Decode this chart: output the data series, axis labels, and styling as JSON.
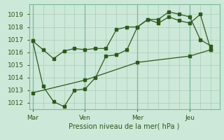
{
  "title": "",
  "xlabel": "Pression niveau de la mer( hPa )",
  "ylabel": "",
  "bg_color": "#cce8d8",
  "grid_color": "#aacdb8",
  "line_color": "#2d5a1b",
  "tick_color": "#2d5a1b",
  "yticks": [
    1012,
    1013,
    1014,
    1015,
    1016,
    1017,
    1018,
    1019
  ],
  "xtick_labels": [
    "Mar",
    "Ven",
    "Mer",
    "Jeu"
  ],
  "xtick_positions": [
    0,
    30,
    60,
    90
  ],
  "ylim": [
    1011.5,
    1019.8
  ],
  "xlim": [
    -2,
    107
  ],
  "series": [
    {
      "x": [
        0,
        6,
        12,
        18,
        24,
        30,
        36,
        42,
        48,
        54,
        60,
        66,
        72,
        78,
        84,
        90,
        96,
        102
      ],
      "y": [
        1016.9,
        1016.2,
        1015.5,
        1016.1,
        1016.3,
        1016.2,
        1016.3,
        1016.3,
        1017.8,
        1018.0,
        1018.0,
        1018.6,
        1018.3,
        1018.8,
        1018.5,
        1018.3,
        1019.0,
        1016.2
      ]
    },
    {
      "x": [
        0,
        6,
        12,
        18,
        24,
        30,
        36,
        42,
        48,
        54,
        60,
        66,
        72,
        78,
        84,
        90,
        96,
        102
      ],
      "y": [
        1016.9,
        1013.3,
        1012.1,
        1011.7,
        1013.0,
        1013.1,
        1014.0,
        1015.7,
        1015.8,
        1016.2,
        1018.0,
        1018.6,
        1018.6,
        1019.2,
        1019.0,
        1018.8,
        1017.0,
        1016.5
      ]
    },
    {
      "x": [
        0,
        30,
        60,
        90,
        102
      ],
      "y": [
        1012.8,
        1013.8,
        1015.2,
        1015.7,
        1016.2
      ]
    }
  ]
}
